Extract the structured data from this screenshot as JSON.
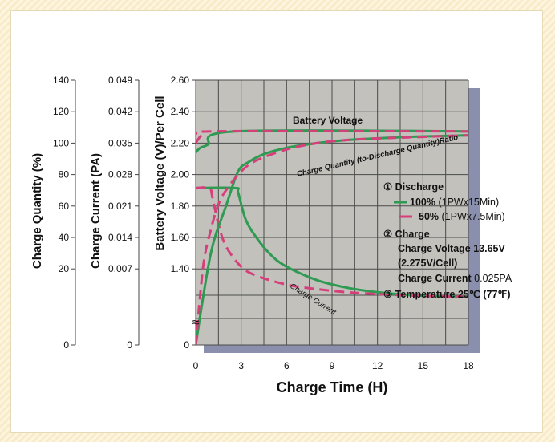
{
  "chart_data": {
    "type": "line",
    "xlabel": "Charge Time (H)",
    "x_ticks": [
      "0",
      "3",
      "6",
      "9",
      "12",
      "15",
      "18"
    ],
    "xlim": [
      0,
      18
    ],
    "axes": [
      {
        "key": "quantity",
        "label": "Charge Quantity (%)",
        "ticks": [
          "140",
          "120",
          "100",
          "80",
          "60",
          "40",
          "20",
          "0"
        ]
      },
      {
        "key": "current",
        "label": "Charge Current (PA)",
        "ticks": [
          "0.049",
          "0.042",
          "0.035",
          "0.028",
          "0.021",
          "0.014",
          "0.007",
          "0"
        ]
      },
      {
        "key": "voltage",
        "label": "Battery Voltage (V)/Per Cell",
        "ticks": [
          "2.60",
          "2.40",
          "2.20",
          "2.00",
          "1.80",
          "1.60",
          "1.40",
          "0"
        ]
      }
    ],
    "ylim_voltage": [
      1.4,
      2.6
    ],
    "ylim_current": [
      0,
      0.049
    ],
    "ylim_quantity": [
      0,
      140
    ],
    "grid": true,
    "annotations": {
      "battery_voltage": "Battery Voltage",
      "charge_quantity": "Charge Quantity (to-Discharge Quantity)Ratio",
      "charge_current": "Charge Current"
    },
    "colors": {
      "100": "#2e9a52",
      "50": "#d6407a",
      "grid": "#4a4a4a",
      "plot_bg": "#c2c1bc",
      "shadow": "#8a8fae"
    },
    "series": [
      {
        "name": "100%",
        "quantity": "Battery Voltage",
        "axis": "voltage",
        "style": "solid",
        "x": [
          0,
          0.3,
          0.8,
          2.6,
          18
        ],
        "y": [
          2.14,
          2.17,
          2.19,
          2.275,
          2.275
        ]
      },
      {
        "name": "50%",
        "quantity": "Battery Voltage",
        "axis": "voltage",
        "style": "dashed",
        "x": [
          0,
          0.4,
          1.2,
          18
        ],
        "y": [
          2.2,
          2.25,
          2.275,
          2.275
        ]
      },
      {
        "name": "100%",
        "quantity": "Charge Current",
        "axis": "current",
        "style": "solid",
        "x": [
          0,
          2.6,
          2.8,
          3.3,
          4,
          5,
          6,
          8,
          10,
          12,
          14,
          16,
          18
        ],
        "y": [
          0.025,
          0.025,
          0.024,
          0.018,
          0.014,
          0.01,
          0.0075,
          0.0045,
          0.0028,
          0.0018,
          0.0012,
          0.0009,
          0.0008
        ]
      },
      {
        "name": "50%",
        "quantity": "Charge Current",
        "axis": "current",
        "style": "dashed",
        "x": [
          0,
          0.9,
          1.1,
          1.5,
          2,
          3,
          4,
          6,
          8,
          10,
          12,
          14,
          16,
          18
        ],
        "y": [
          0.025,
          0.025,
          0.023,
          0.017,
          0.012,
          0.0075,
          0.0055,
          0.0035,
          0.0025,
          0.0018,
          0.0014,
          0.0011,
          0.0009,
          0.0008
        ]
      },
      {
        "name": "100%",
        "quantity": "Charge Quantity",
        "axis": "quantity",
        "style": "solid",
        "x": [
          0,
          1,
          2,
          2.8,
          3.5,
          4.5,
          6,
          8,
          10,
          12,
          14,
          16,
          18
        ],
        "y": [
          0,
          30,
          60,
          82,
          88,
          93,
          97,
          100,
          102,
          103,
          104,
          104.5,
          105
        ]
      },
      {
        "name": "50%",
        "quantity": "Charge Quantity",
        "axis": "quantity",
        "style": "dashed",
        "x": [
          0,
          0.5,
          1,
          1.5,
          2,
          3,
          4,
          6,
          8,
          10,
          12,
          15,
          18
        ],
        "y": [
          0,
          22,
          45,
          61,
          70,
          82,
          89,
          96,
          100,
          102,
          103,
          104,
          105
        ]
      }
    ]
  },
  "legend": {
    "discharge_title": "① Discharge",
    "item_100_bold": "100%",
    "item_100_note": " (1PWx15Min)",
    "item_50_bold": "50%",
    "item_50_note": " (1PWx7.5Min)",
    "charge_title": "② Charge",
    "charge_voltage_line1": "Charge Voltage 13.65V",
    "charge_voltage_line2": "(2.275V/Cell)",
    "charge_current_label": "Charge Current ",
    "charge_current_value": "0.025PA",
    "temperature": "③ Temperature 25℃ (77℉)"
  },
  "axis_break": "≈"
}
